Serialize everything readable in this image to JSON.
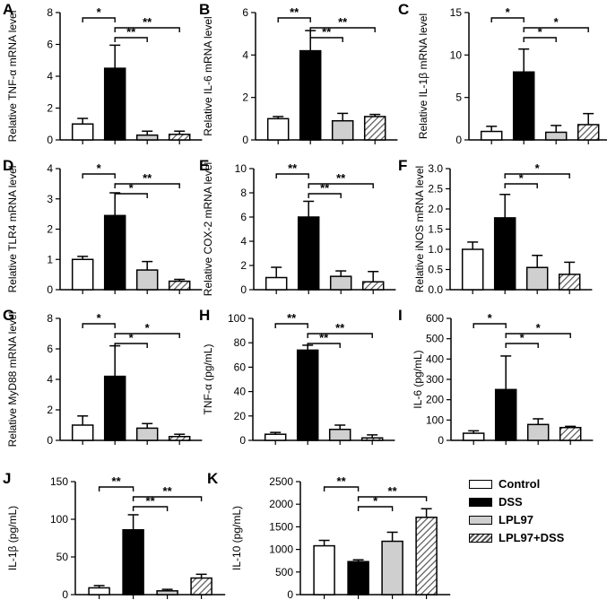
{
  "legend": [
    {
      "label": "Control",
      "style": "control"
    },
    {
      "label": "DSS",
      "style": "dss"
    },
    {
      "label": "LPL97",
      "style": "lpl97"
    },
    {
      "label": "LPL97+DSS",
      "style": "hatch"
    }
  ],
  "colors": {
    "control": "#ffffff",
    "dss": "#000000",
    "lpl97": "#cfcfcf",
    "hatch_line": "#555555",
    "axis": "#000000"
  },
  "chart_data": [
    {
      "panel": "A",
      "type": "bar",
      "ylabel": "Relative TNF-α mRNA level",
      "categories": [
        "Control",
        "DSS",
        "LPL97",
        "LPL97+DSS"
      ],
      "values": [
        1.0,
        4.5,
        0.3,
        0.35
      ],
      "errors": [
        0.35,
        1.45,
        0.25,
        0.2
      ],
      "ylim": [
        0,
        8
      ],
      "yticks": [
        "0",
        "2",
        "4",
        "6",
        "8"
      ],
      "significance": [
        {
          "from": 0,
          "to": 1,
          "label": "*"
        },
        {
          "from": 1,
          "to": 2,
          "label": "**"
        },
        {
          "from": 1,
          "to": 3,
          "label": "**"
        }
      ]
    },
    {
      "panel": "B",
      "type": "bar",
      "ylabel": "Relative IL-6 mRNA level",
      "categories": [
        "Control",
        "DSS",
        "LPL97",
        "LPL97+DSS"
      ],
      "values": [
        1.0,
        4.2,
        0.9,
        1.1
      ],
      "errors": [
        0.1,
        0.95,
        0.35,
        0.1
      ],
      "ylim": [
        0,
        6
      ],
      "yticks": [
        "0",
        "2",
        "4",
        "6"
      ],
      "significance": [
        {
          "from": 0,
          "to": 1,
          "label": "**"
        },
        {
          "from": 1,
          "to": 2,
          "label": "**"
        },
        {
          "from": 1,
          "to": 3,
          "label": "**"
        }
      ]
    },
    {
      "panel": "C",
      "type": "bar",
      "ylabel": "Relative IL-1β mRNA level",
      "categories": [
        "Control",
        "DSS",
        "LPL97",
        "LPL97+DSS"
      ],
      "values": [
        1.0,
        8.0,
        0.9,
        1.8
      ],
      "errors": [
        0.6,
        2.7,
        0.8,
        1.3
      ],
      "ylim": [
        0,
        15
      ],
      "yticks": [
        "0",
        "5",
        "10",
        "15"
      ],
      "significance": [
        {
          "from": 0,
          "to": 1,
          "label": "*"
        },
        {
          "from": 1,
          "to": 2,
          "label": "*"
        },
        {
          "from": 1,
          "to": 3,
          "label": "*"
        }
      ]
    },
    {
      "panel": "D",
      "type": "bar",
      "ylabel": "Relative TLR4 mRNA level",
      "categories": [
        "Control",
        "DSS",
        "LPL97",
        "LPL97+DSS"
      ],
      "values": [
        1.0,
        2.45,
        0.65,
        0.28
      ],
      "errors": [
        0.1,
        0.75,
        0.28,
        0.06
      ],
      "ylim": [
        0,
        4
      ],
      "yticks": [
        "0",
        "1",
        "2",
        "3",
        "4"
      ],
      "significance": [
        {
          "from": 0,
          "to": 1,
          "label": "*"
        },
        {
          "from": 1,
          "to": 2,
          "label": "*"
        },
        {
          "from": 1,
          "to": 3,
          "label": "**"
        }
      ]
    },
    {
      "panel": "E",
      "type": "bar",
      "ylabel": "Relative COX-2 mRNA level",
      "categories": [
        "Control",
        "DSS",
        "LPL97",
        "LPL97+DSS"
      ],
      "values": [
        1.0,
        6.0,
        1.1,
        0.65
      ],
      "errors": [
        0.85,
        1.3,
        0.45,
        0.85
      ],
      "ylim": [
        0,
        10
      ],
      "yticks": [
        "0",
        "2",
        "4",
        "6",
        "8",
        "10"
      ],
      "significance": [
        {
          "from": 0,
          "to": 1,
          "label": "**"
        },
        {
          "from": 1,
          "to": 2,
          "label": "**"
        },
        {
          "from": 1,
          "to": 3,
          "label": "**"
        }
      ]
    },
    {
      "panel": "F",
      "type": "bar",
      "ylabel": "Relative iNOS mRNA level",
      "categories": [
        "Control",
        "DSS",
        "LPL97",
        "LPL97+DSS"
      ],
      "values": [
        1.0,
        1.78,
        0.55,
        0.38
      ],
      "errors": [
        0.18,
        0.58,
        0.3,
        0.3
      ],
      "ylim": [
        0,
        3
      ],
      "yticks": [
        "0.0",
        "0.5",
        "1.0",
        "1.5",
        "2.0",
        "2.5",
        "3.0"
      ],
      "significance": [
        {
          "from": 1,
          "to": 2,
          "label": "*"
        },
        {
          "from": 1,
          "to": 3,
          "label": "*"
        }
      ]
    },
    {
      "panel": "G",
      "type": "bar",
      "ylabel": "Relative MyD88 mRNA level",
      "categories": [
        "Control",
        "DSS",
        "LPL97",
        "LPL97+DSS"
      ],
      "values": [
        1.0,
        4.2,
        0.8,
        0.25
      ],
      "errors": [
        0.6,
        2.0,
        0.3,
        0.15
      ],
      "ylim": [
        0,
        8
      ],
      "yticks": [
        "0",
        "2",
        "4",
        "6",
        "8"
      ],
      "significance": [
        {
          "from": 0,
          "to": 1,
          "label": "*"
        },
        {
          "from": 1,
          "to": 2,
          "label": "*"
        },
        {
          "from": 1,
          "to": 3,
          "label": "*"
        }
      ]
    },
    {
      "panel": "H",
      "type": "bar",
      "ylabel": "TNF-α  (pg/mL)",
      "categories": [
        "Control",
        "DSS",
        "LPL97",
        "LPL97+DSS"
      ],
      "values": [
        5.0,
        74.0,
        9.0,
        2.0
      ],
      "errors": [
        1.5,
        4.0,
        3.5,
        2.5
      ],
      "ylim": [
        0,
        100
      ],
      "yticks": [
        "0",
        "20",
        "40",
        "60",
        "80",
        "100"
      ],
      "significance": [
        {
          "from": 0,
          "to": 1,
          "label": "**"
        },
        {
          "from": 1,
          "to": 2,
          "label": "**"
        },
        {
          "from": 1,
          "to": 3,
          "label": "**"
        }
      ]
    },
    {
      "panel": "I",
      "type": "bar",
      "ylabel": "IL-6  (pg/mL)",
      "categories": [
        "Control",
        "DSS",
        "LPL97",
        "LPL97+DSS"
      ],
      "values": [
        35,
        250,
        78,
        63
      ],
      "errors": [
        12,
        165,
        28,
        6
      ],
      "ylim": [
        0,
        600
      ],
      "yticks": [
        "0",
        "100",
        "200",
        "300",
        "400",
        "500",
        "600"
      ],
      "significance": [
        {
          "from": 0,
          "to": 1,
          "label": "*"
        },
        {
          "from": 1,
          "to": 2,
          "label": "*"
        },
        {
          "from": 1,
          "to": 3,
          "label": "*"
        }
      ]
    },
    {
      "panel": "J",
      "type": "bar",
      "ylabel": "IL-1β  (pg/mL)",
      "categories": [
        "Control",
        "DSS",
        "LPL97",
        "LPL97+DSS"
      ],
      "values": [
        9,
        86,
        5,
        22
      ],
      "errors": [
        3,
        20,
        2,
        5
      ],
      "ylim": [
        0,
        150
      ],
      "yticks": [
        "0",
        "50",
        "100",
        "150"
      ],
      "significance": [
        {
          "from": 0,
          "to": 1,
          "label": "**"
        },
        {
          "from": 1,
          "to": 2,
          "label": "**"
        },
        {
          "from": 1,
          "to": 3,
          "label": "**"
        }
      ]
    },
    {
      "panel": "K",
      "type": "bar",
      "ylabel": "IL-10  (pg/mL)",
      "categories": [
        "Control",
        "DSS",
        "LPL97",
        "LPL97+DSS"
      ],
      "values": [
        1080,
        730,
        1180,
        1710
      ],
      "errors": [
        120,
        40,
        200,
        190
      ],
      "ylim": [
        0,
        2500
      ],
      "yticks": [
        "0",
        "500",
        "1000",
        "1500",
        "2000",
        "2500"
      ],
      "significance": [
        {
          "from": 0,
          "to": 1,
          "label": "**"
        },
        {
          "from": 1,
          "to": 2,
          "label": "*"
        },
        {
          "from": 1,
          "to": 3,
          "label": "**"
        }
      ]
    }
  ]
}
